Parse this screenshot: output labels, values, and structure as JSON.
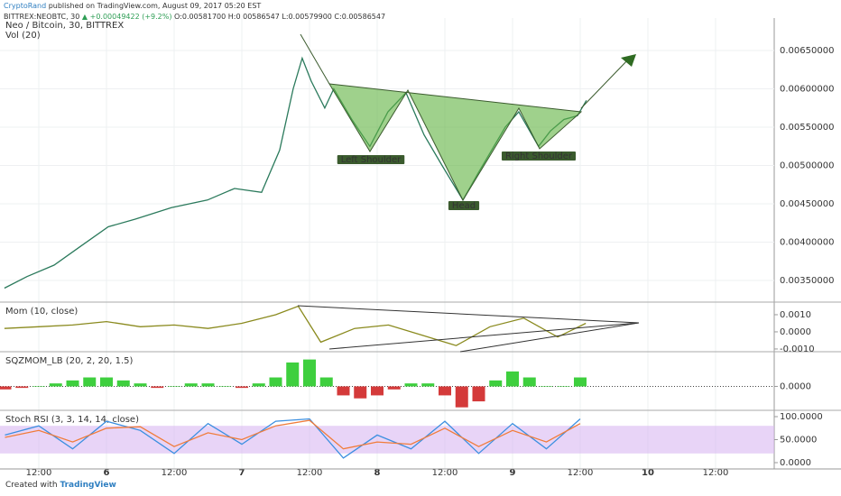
{
  "header": {
    "author": "CryptoRand",
    "published": "published on TradingView.com, August 09, 2017 05:20 EST",
    "symbol": "BITTREX:NEOBTC, 30",
    "change": "▲ +0.00049422 (+9.2%)",
    "ohlc": "O:0.00581700 H:0.00586547 L:0.00579900 C:0.00586547"
  },
  "footer": {
    "created": "Created with",
    "brand": "TradingView"
  },
  "chart_data": [
    {
      "type": "line",
      "title": "Neo / Bitcoin, 30, BITTREX",
      "subtitle": "Vol (20)",
      "color": "#2b7a5c",
      "x": [
        5.9,
        9.9,
        14.7,
        19.5,
        24.3,
        29.1,
        35.5,
        41.9,
        46.7,
        51.5,
        54.7,
        57.1,
        58.7,
        60.3,
        62.7,
        64.3,
        67.5,
        70.7,
        73.9,
        77.1,
        80.3,
        83.5,
        87.2,
        89.9,
        92.3,
        94.7,
        97.1,
        100.6,
        102.7,
        105.1,
        107.5,
        109.1
      ],
      "values": [
        0.0034,
        0.00355,
        0.0037,
        0.00395,
        0.0042,
        0.0043,
        0.00445,
        0.00455,
        0.0047,
        0.00465,
        0.0052,
        0.006,
        0.0064,
        0.0061,
        0.00575,
        0.006,
        0.0056,
        0.00525,
        0.0057,
        0.00595,
        0.0054,
        0.005,
        0.00455,
        0.0049,
        0.0052,
        0.0055,
        0.0057,
        0.00525,
        0.00545,
        0.0056,
        0.00565,
        0.00585
      ],
      "xlim": [
        5.12,
        142.4
      ],
      "xticks": [
        {
          "value": 12,
          "label": "12:00"
        },
        {
          "value": 24,
          "label": "6"
        },
        {
          "value": 36,
          "label": "12:00"
        },
        {
          "value": 48,
          "label": "7"
        },
        {
          "value": 60,
          "label": "12:00"
        },
        {
          "value": 72,
          "label": "8"
        },
        {
          "value": 84,
          "label": "12:00"
        },
        {
          "value": 96,
          "label": "9"
        },
        {
          "value": 108,
          "label": "12:00"
        },
        {
          "value": 120,
          "label": "10"
        },
        {
          "value": 132,
          "label": "12:00"
        }
      ],
      "ylim": [
        0.003241,
        0.006924
      ],
      "yticks": [
        {
          "value": 0.0035,
          "label": "0.00350000"
        },
        {
          "value": 0.004,
          "label": "0.00400000"
        },
        {
          "value": 0.0045,
          "label": "0.00450000"
        },
        {
          "value": 0.005,
          "label": "0.00500000"
        },
        {
          "value": 0.0055,
          "label": "0.00550000"
        },
        {
          "value": 0.006,
          "label": "0.00600000"
        },
        {
          "value": 0.0065,
          "label": "0.00650000"
        }
      ],
      "annotations": [
        "Left Shoulder",
        "Head",
        "Right Shoulder"
      ],
      "grid": true
    },
    {
      "type": "line",
      "title": "Mom (10, close)",
      "color": "#8a8a1e",
      "x": [
        5.9,
        12,
        18,
        24,
        30,
        36,
        42,
        48,
        54,
        58,
        62,
        68,
        74,
        80,
        86,
        92,
        98,
        104,
        109
      ],
      "values": [
        0.0002,
        0.0003,
        0.0004,
        0.0006,
        0.0003,
        0.0004,
        0.0002,
        0.0005,
        0.001,
        0.0015,
        -0.0006,
        0.0002,
        0.0004,
        -0.0002,
        -0.0008,
        0.0003,
        0.0008,
        -0.0003,
        0.0005
      ],
      "ylim": [
        -0.00116,
        0.00163
      ],
      "yticks": [
        {
          "value": -0.001,
          "label": "-0.0010"
        },
        {
          "value": 0,
          "label": "0.0000"
        },
        {
          "value": 0.001,
          "label": "0.0010"
        }
      ]
    },
    {
      "type": "bar",
      "title": "SQZMOM_LB (20, 2, 20, 1.5)",
      "positive_color": "#3ecf3e",
      "negative_color": "#d43a3a",
      "x": [
        6,
        9,
        12,
        15,
        18,
        21,
        24,
        27,
        30,
        33,
        36,
        39,
        42,
        45,
        48,
        51,
        54,
        57,
        60,
        63,
        66,
        69,
        72,
        75,
        78,
        81,
        84,
        87,
        90,
        93,
        96,
        99,
        102,
        105,
        108
      ],
      "values": [
        -0.0001,
        -5e-05,
        0,
        0.0001,
        0.0002,
        0.0003,
        0.0003,
        0.0002,
        0.0001,
        -5e-05,
        0,
        0.0001,
        0.0001,
        0,
        -5e-05,
        0.0001,
        0.0003,
        0.0008,
        0.0009,
        0.0003,
        -0.0003,
        -0.0004,
        -0.0003,
        -0.0001,
        0.0001,
        0.0001,
        -0.0003,
        -0.0007,
        -0.0005,
        0.0002,
        0.0005,
        0.0003,
        0,
        0,
        0.0003
      ],
      "ylim": [
        -0.0008,
        0.0011
      ],
      "yticks": [
        {
          "value": 0,
          "label": "0.0000"
        }
      ]
    },
    {
      "type": "line",
      "title": "Stoch RSI (3, 3, 14, 14, close)",
      "band": [
        20,
        80
      ],
      "band_color": "#d9b8f2",
      "x": [
        6,
        12,
        18,
        24,
        30,
        36,
        42,
        48,
        54,
        60,
        66,
        72,
        78,
        84,
        90,
        96,
        102,
        108
      ],
      "series": [
        {
          "color": "#3b8fe0",
          "values": [
            60,
            80,
            30,
            90,
            70,
            20,
            85,
            40,
            90,
            95,
            10,
            60,
            30,
            90,
            20,
            85,
            30,
            95
          ]
        },
        {
          "color": "#f07c3a",
          "values": [
            55,
            70,
            45,
            75,
            78,
            35,
            65,
            50,
            80,
            92,
            30,
            45,
            40,
            75,
            35,
            70,
            45,
            85
          ]
        }
      ],
      "ylim": [
        -13.7,
        109.8
      ],
      "yticks": [
        {
          "value": 0,
          "label": "0.0000"
        },
        {
          "value": 50,
          "label": "50.0000"
        },
        {
          "value": 100,
          "label": "100.0000"
        }
      ]
    }
  ]
}
